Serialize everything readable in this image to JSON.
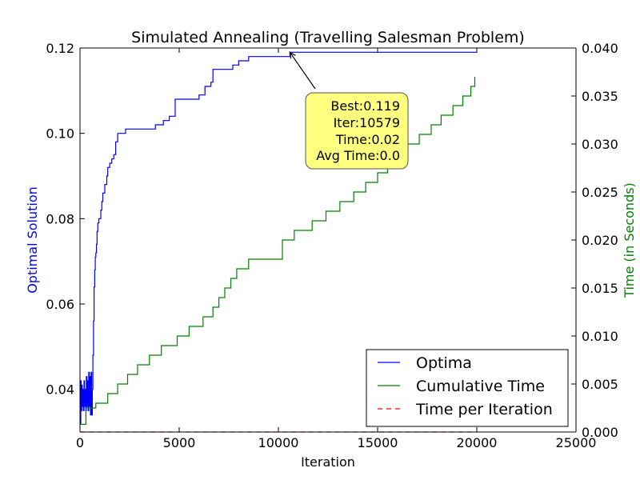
{
  "chart_data": {
    "type": "line",
    "title": "Simulated Annealing (Travelling Salesman Problem)",
    "xlabel": "Iteration",
    "ylabel_left": "Optimal Solution",
    "ylabel_right": "Time (in Seconds)",
    "xlim": [
      0,
      25000
    ],
    "ylim_left": [
      0.03,
      0.12
    ],
    "ylim_right": [
      0.0,
      0.04
    ],
    "x_ticks": [
      "0",
      "5000",
      "10000",
      "15000",
      "20000",
      "25000"
    ],
    "y_left_ticks": [
      "0.04",
      "0.06",
      "0.08",
      "0.10",
      "0.12"
    ],
    "y_right_ticks": [
      "0.000",
      "0.005",
      "0.010",
      "0.015",
      "0.020",
      "0.025",
      "0.030",
      "0.035",
      "0.040"
    ],
    "grid": false,
    "legend_position": "lower-right",
    "series": [
      {
        "name": "Optima",
        "axis": "left",
        "color": "#0000ff",
        "style": "solid",
        "step": true,
        "x": [
          0,
          40,
          60,
          90,
          110,
          140,
          170,
          200,
          230,
          260,
          290,
          320,
          350,
          380,
          410,
          440,
          470,
          500,
          530,
          560,
          590,
          620,
          650,
          680,
          710,
          740,
          770,
          800,
          830,
          860,
          900,
          950,
          1000,
          1050,
          1100,
          1150,
          1250,
          1350,
          1400,
          1500,
          1600,
          1700,
          1800,
          1900,
          2000,
          2200,
          2300,
          3200,
          3800,
          4200,
          4500,
          4800,
          5500,
          6000,
          6300,
          6600,
          6700,
          7700,
          8000,
          8500,
          10580,
          20000
        ],
        "y": [
          0.032,
          0.042,
          0.035,
          0.041,
          0.036,
          0.04,
          0.035,
          0.042,
          0.036,
          0.04,
          0.035,
          0.043,
          0.036,
          0.042,
          0.035,
          0.044,
          0.036,
          0.043,
          0.034,
          0.044,
          0.034,
          0.04,
          0.048,
          0.056,
          0.064,
          0.068,
          0.071,
          0.072,
          0.074,
          0.077,
          0.079,
          0.08,
          0.08,
          0.082,
          0.084,
          0.086,
          0.088,
          0.09,
          0.092,
          0.093,
          0.094,
          0.095,
          0.098,
          0.1,
          0.1,
          0.1,
          0.101,
          0.101,
          0.102,
          0.103,
          0.104,
          0.108,
          0.108,
          0.109,
          0.111,
          0.112,
          0.115,
          0.116,
          0.117,
          0.118,
          0.119,
          0.119
        ]
      },
      {
        "name": "Cumulative Time",
        "axis": "right",
        "color": "#008000",
        "style": "solid",
        "step": true,
        "x": [
          0,
          300,
          800,
          1400,
          1900,
          2400,
          2900,
          3500,
          4100,
          4900,
          5500,
          6200,
          6700,
          7000,
          7300,
          7600,
          7900,
          8500,
          10200,
          10800,
          11700,
          12400,
          13100,
          13800,
          14400,
          15000,
          15500,
          16000,
          16500,
          17100,
          17700,
          18200,
          18800,
          19300,
          19700,
          19900
        ],
        "y": [
          0.0008,
          0.0025,
          0.003,
          0.004,
          0.005,
          0.006,
          0.007,
          0.008,
          0.009,
          0.01,
          0.011,
          0.012,
          0.013,
          0.014,
          0.015,
          0.016,
          0.017,
          0.018,
          0.02,
          0.021,
          0.022,
          0.023,
          0.024,
          0.025,
          0.026,
          0.027,
          0.028,
          0.029,
          0.03,
          0.031,
          0.032,
          0.033,
          0.034,
          0.035,
          0.036,
          0.037
        ]
      },
      {
        "name": "Time per Iteration",
        "axis": "right",
        "color": "#ff0000",
        "style": "dashed",
        "step": false,
        "x": [
          0,
          20000
        ],
        "y": [
          0.0,
          0.0
        ]
      }
    ],
    "annotation": {
      "lines": [
        "Best:0.119",
        "Iter:10579",
        "Time:0.02",
        "Avg Time:0.0"
      ],
      "point": {
        "x": 10579,
        "y": 0.119
      },
      "box_color": "#ffff80"
    }
  }
}
